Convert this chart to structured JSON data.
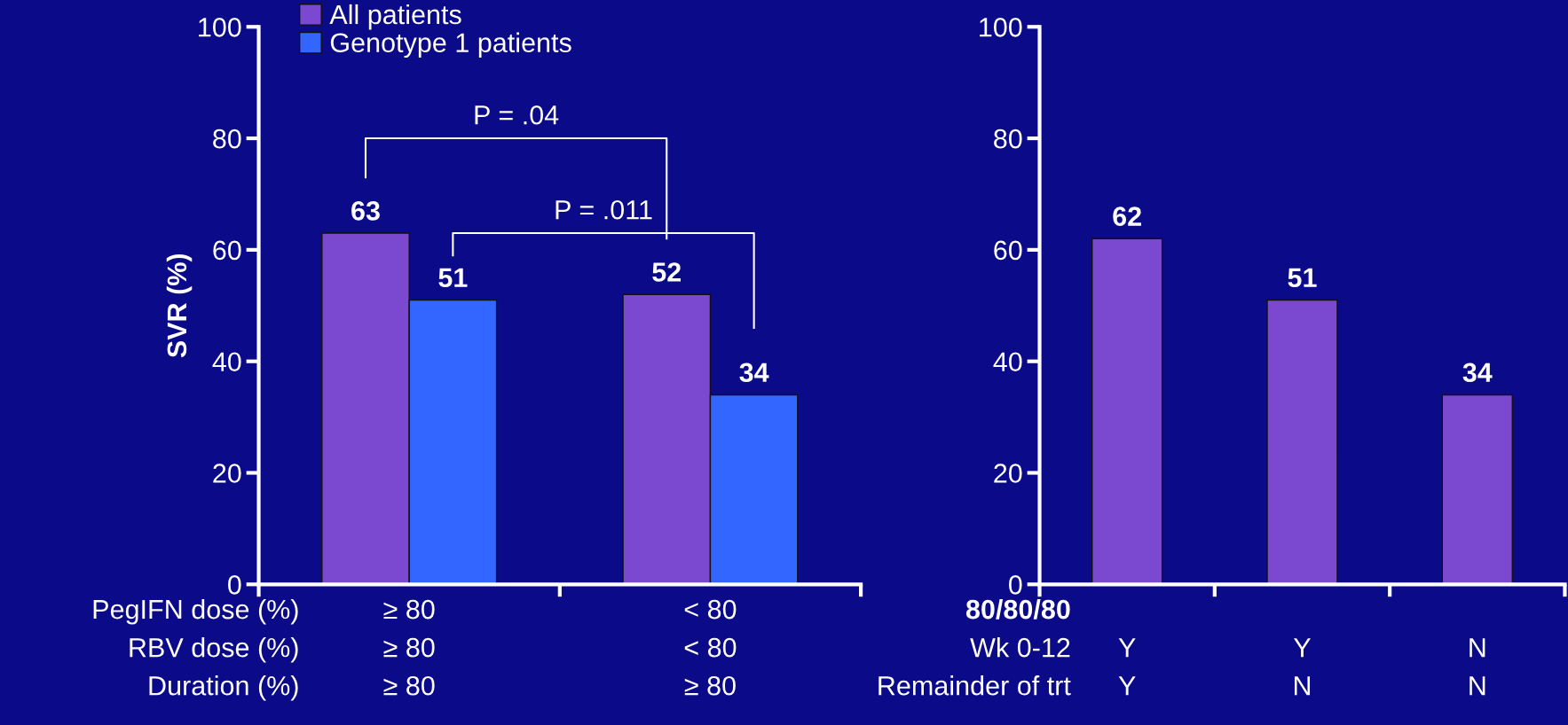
{
  "chart_data": [
    {
      "type": "bar",
      "ylabel": "SVR (%)",
      "categories": [
        "≥ 80\n≥ 80\n≥ 80",
        "< 80\n< 80\n≥ 80"
      ],
      "series": [
        {
          "name": "All patients",
          "color": "#7b48d0",
          "values": [
            63,
            52
          ]
        },
        {
          "name": "Genotype 1 patients",
          "color": "#3366ff",
          "values": [
            51,
            34
          ]
        }
      ],
      "ylim": [
        0,
        100
      ],
      "yticks": [
        0,
        20,
        40,
        60,
        80,
        100
      ],
      "data_labels": true,
      "legend": "top left",
      "annotations": [
        "P = .04",
        "P = .011",
        "PegIFN dose (%)",
        "RBV dose (%)",
        "Duration (%)"
      ]
    },
    {
      "type": "bar",
      "categories": [
        "Y\nY",
        "Y\nN",
        "N\nN"
      ],
      "series": [
        {
          "color": "#7b48d0",
          "values": [
            62,
            51,
            34
          ]
        }
      ],
      "ylim": [
        0,
        100
      ],
      "yticks": [
        0,
        20,
        40,
        60,
        80,
        100
      ],
      "data_labels": true,
      "annotations": [
        "80/80/80",
        "Wk 0-12",
        "Remainder of trt"
      ]
    }
  ]
}
